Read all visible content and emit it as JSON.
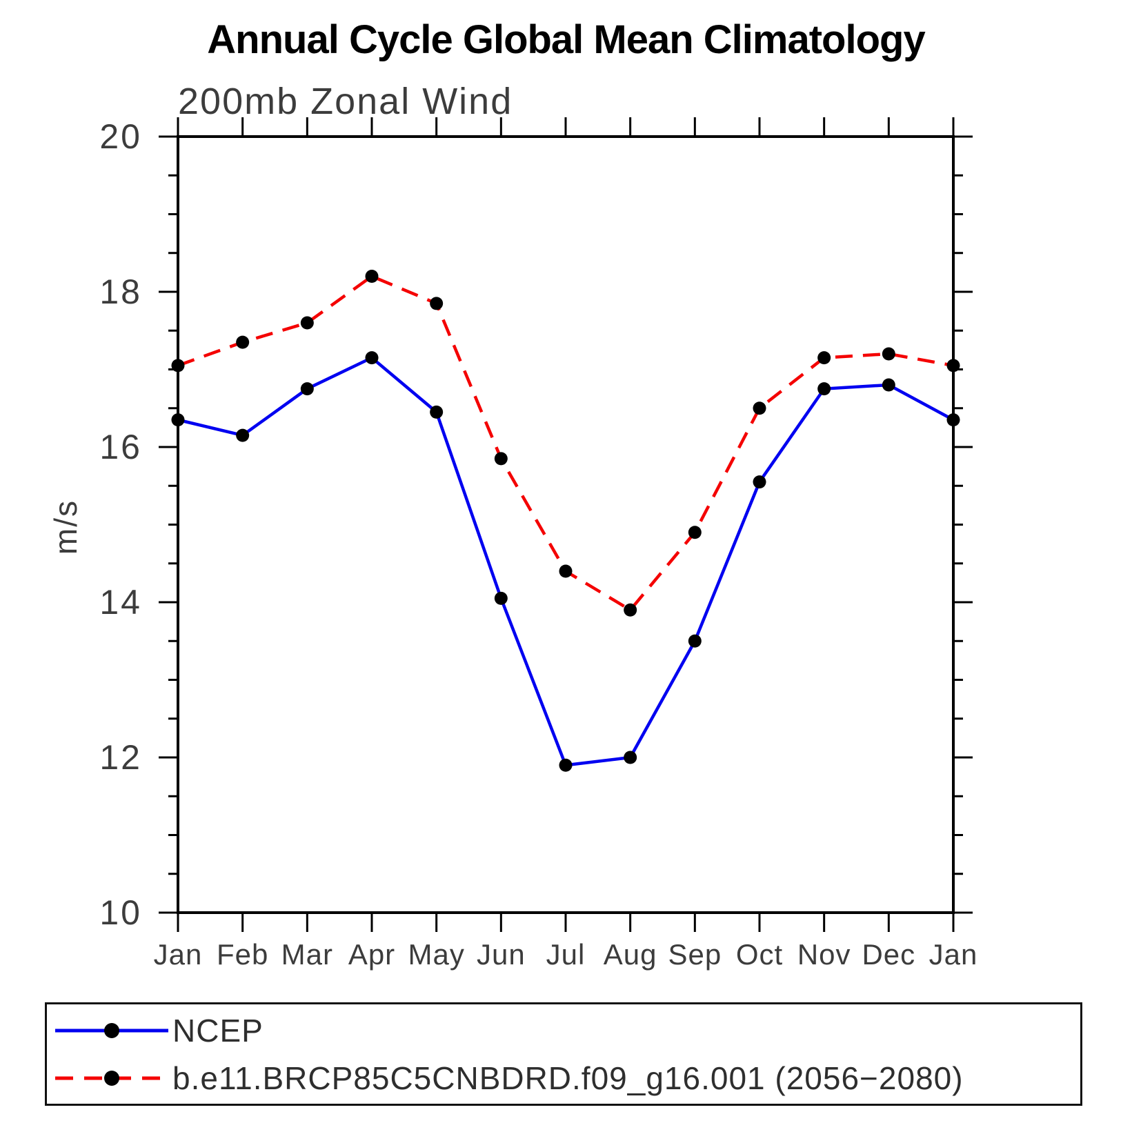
{
  "page": {
    "title": "Annual Cycle Global Mean Climatology",
    "subtitle": "200mb Zonal Wind",
    "ylabel": "m/s"
  },
  "legend": {
    "entries": [
      {
        "label": "NCEP",
        "color": "#0000f0",
        "style": "solid"
      },
      {
        "label": "b.e11.BRCP85C5CNBDRD.f09_g16.001 (2056−2080)",
        "color": "#f40000",
        "style": "dashed"
      }
    ]
  },
  "chart_data": {
    "type": "line",
    "title": "Annual Cycle Global Mean Climatology",
    "subtitle": "200mb Zonal Wind",
    "xlabel": "",
    "ylabel": "m/s",
    "categories": [
      "Jan",
      "Feb",
      "Mar",
      "Apr",
      "May",
      "Jun",
      "Jul",
      "Aug",
      "Sep",
      "Oct",
      "Nov",
      "Dec",
      "Jan"
    ],
    "ylim": [
      10,
      20
    ],
    "ytick_major": [
      10,
      12,
      14,
      16,
      18,
      20
    ],
    "ytick_minor_step": 0.5,
    "grid": false,
    "legend_position": "bottom",
    "marker_color": "#000000",
    "axis_color": "#000000",
    "tick_label_color": "#3c3c3c",
    "series": [
      {
        "name": "NCEP",
        "color": "#0000f0",
        "style": "solid",
        "marker": "circle",
        "values": [
          16.35,
          16.15,
          16.75,
          17.15,
          16.45,
          14.05,
          11.9,
          12.0,
          13.5,
          15.55,
          16.75,
          16.8,
          16.35
        ]
      },
      {
        "name": "b.e11.BRCP85C5CNBDRD.f09_g16.001 (2056−2080)",
        "color": "#f40000",
        "style": "dashed",
        "marker": "circle",
        "values": [
          17.05,
          17.35,
          17.6,
          18.2,
          17.85,
          15.85,
          14.4,
          13.9,
          14.9,
          16.5,
          17.15,
          17.2,
          17.05
        ]
      }
    ]
  }
}
